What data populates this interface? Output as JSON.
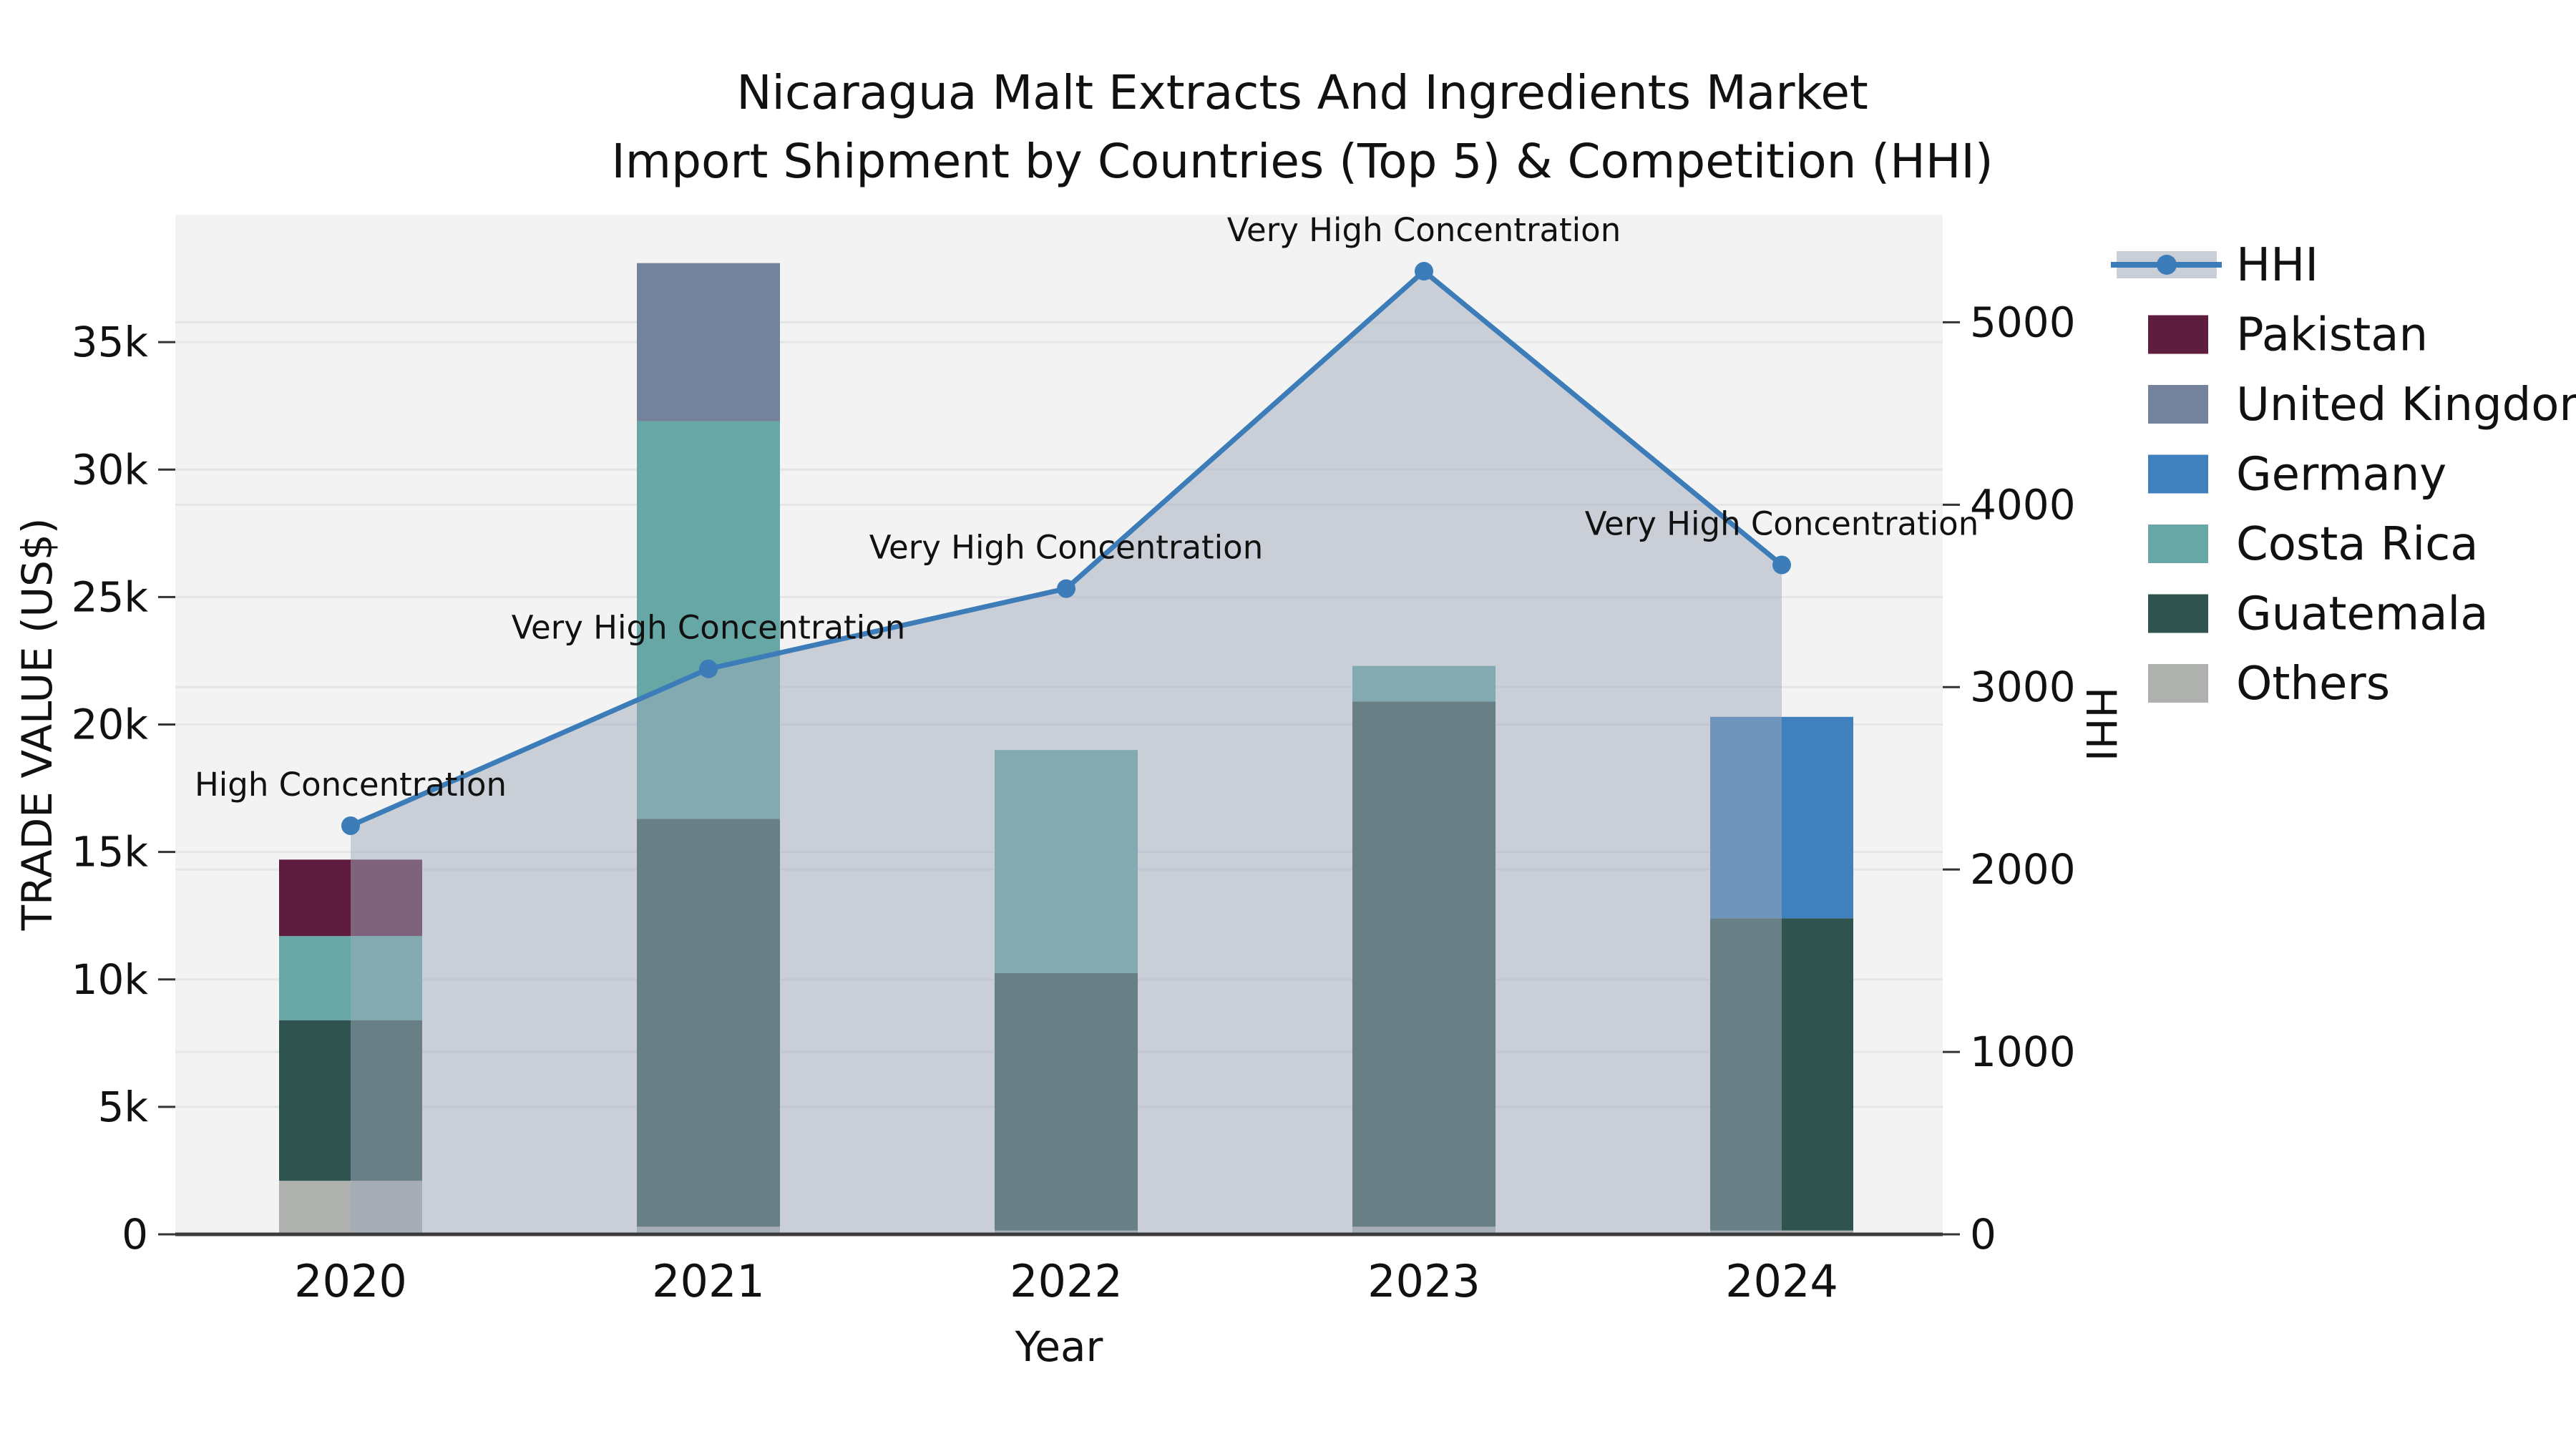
{
  "chart_data": {
    "type": "bar+line",
    "title_line1": "Nicaragua Malt Extracts And Ingredients Market",
    "title_line2": "Import Shipment by Countries (Top 5) & Competition (HHI)",
    "categories": [
      "2020",
      "2021",
      "2022",
      "2023",
      "2024"
    ],
    "bar_series": [
      {
        "name": "Others",
        "color": "#afb1af",
        "values": [
          2100,
          300,
          150,
          300,
          150
        ]
      },
      {
        "name": "Guatemala",
        "color": "#2f544f",
        "values": [
          6300,
          16000,
          10100,
          20600,
          12250
        ]
      },
      {
        "name": "Costa Rica",
        "color": "#67a8a6",
        "values": [
          3300,
          15600,
          8750,
          1400,
          0
        ]
      },
      {
        "name": "Germany",
        "color": "#4080be",
        "values": [
          0,
          0,
          0,
          0,
          7900
        ]
      },
      {
        "name": "United Kingdom",
        "color": "#74839b",
        "values": [
          0,
          6200,
          0,
          0,
          0
        ]
      },
      {
        "name": "Pakistan",
        "color": "#5e1d3f",
        "values": [
          3000,
          0,
          0,
          0,
          0
        ]
      }
    ],
    "line_series": {
      "name": "HHI",
      "color": "#3c7cb8",
      "area_fill": "rgba(160,169,188,0.5)",
      "values": [
        2240,
        3100,
        3540,
        5280,
        3670
      ]
    },
    "annotations": [
      "High Concentration",
      "Very High Concentration",
      "Very High Concentration",
      "Very High Concentration",
      "Very High Concentration"
    ],
    "axes": {
      "left": {
        "label": "TRADE VALUE (US$)",
        "max": 40000,
        "ticks": [
          0,
          5000,
          10000,
          15000,
          20000,
          25000,
          30000,
          35000
        ],
        "tick_labels": [
          "0",
          "5k",
          "10k",
          "15k",
          "20k",
          "25k",
          "30k",
          "35k"
        ]
      },
      "right": {
        "label": "HHI",
        "max": 5590,
        "ticks": [
          0,
          1000,
          2000,
          3000,
          4000,
          5000
        ],
        "tick_labels": [
          "0",
          "1000",
          "2000",
          "3000",
          "4000",
          "5000"
        ]
      },
      "x": {
        "label": "Year"
      }
    },
    "legend": {
      "items": [
        {
          "label": "HHI",
          "type": "line",
          "color": "#3c7cb8"
        },
        {
          "label": "Pakistan",
          "type": "patch",
          "color": "#5e1d3f"
        },
        {
          "label": "United Kingdom",
          "type": "patch",
          "color": "#74839b"
        },
        {
          "label": "Germany",
          "type": "patch",
          "color": "#4080be"
        },
        {
          "label": "Costa Rica",
          "type": "patch",
          "color": "#67a8a6"
        },
        {
          "label": "Guatemala",
          "type": "patch",
          "color": "#2f544f"
        },
        {
          "label": "Others",
          "type": "patch",
          "color": "#afb1af"
        }
      ]
    },
    "colors": {
      "plot_bg": "#f2f3f2",
      "grid": "#e4e5e6",
      "axis_line": "#3b3b3b",
      "tick_mark": "#333333",
      "text": "#111111",
      "legend_band": "#c9ced7"
    },
    "layout_hints": {
      "grid": "on",
      "legend_position": "right",
      "left_ylim": [
        0,
        40000
      ],
      "right_ylim": [
        0,
        5590
      ]
    }
  }
}
